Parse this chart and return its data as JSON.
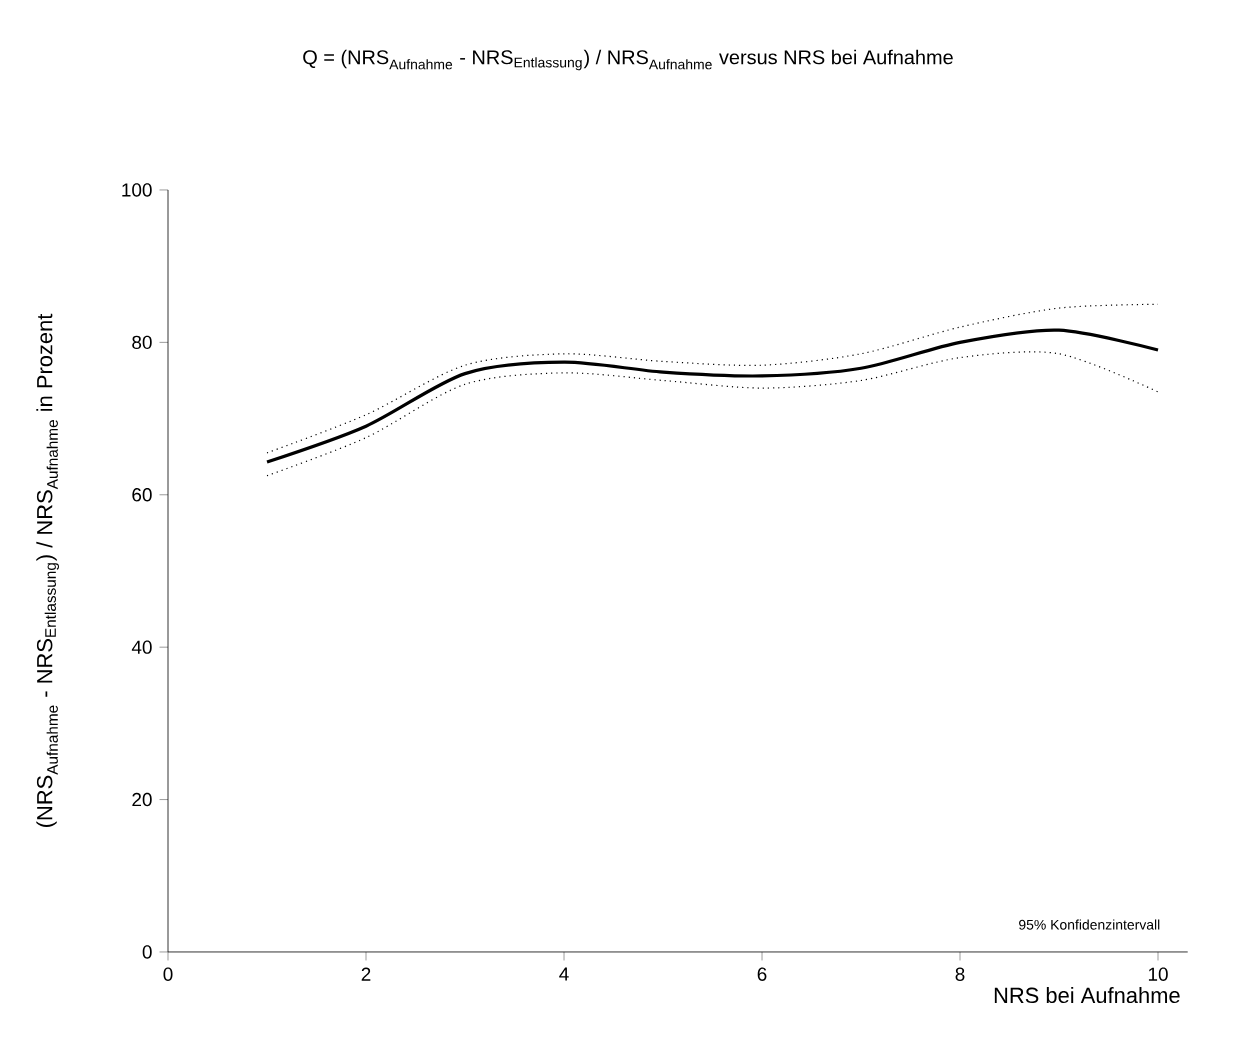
{
  "chart_data": {
    "type": "line",
    "title": "\\text{Q = (NRS}_{\\text{Aufnahme}}\\text{ - NRS}_{\\text{Entlassung}}\\text{) / NRS}_{\\text{Aufnahme}}\\text{ versus NRS bei Aufnahme}",
    "xlabel": "NRS bei Aufnahme",
    "ylabel": "\\text{(NRS}_{\\text{Aufnahme}}\\text{ - NRS}_{\\text{Entlassung}}\\text{) / NRS}_{\\text{Aufnahme}}\\text{ in Prozent}",
    "annotations": [
      "95% Konfidenzintervall"
    ],
    "x": [
      1,
      2,
      3,
      4,
      5,
      6,
      7,
      8,
      9,
      10
    ],
    "series": [
      {
        "color": "#000000",
        "values": [
          64.3,
          69,
          75.9,
          77.4,
          76.1,
          75.6,
          76.6,
          80,
          81.6,
          79
        ]
      },
      {
        "color": "#000000",
        "line_style": "dotted",
        "values": [
          62.5,
          67.5,
          74.5,
          76,
          75,
          74,
          75,
          78,
          78.5,
          73.5
        ]
      },
      {
        "color": "#000000",
        "line_style": "dotted",
        "values": [
          65.5,
          70.5,
          77,
          78.5,
          77.5,
          77,
          78.5,
          82,
          84.5,
          85
        ]
      }
    ],
    "xlim": [
      0,
      10.3
    ],
    "ylim": [
      0,
      100
    ],
    "xticks": [
      0,
      2,
      4,
      6,
      8,
      10
    ],
    "yticks": [
      0,
      20,
      40,
      60,
      80,
      100
    ],
    "grid": false,
    "marker": "none",
    "line_style": "solid"
  }
}
